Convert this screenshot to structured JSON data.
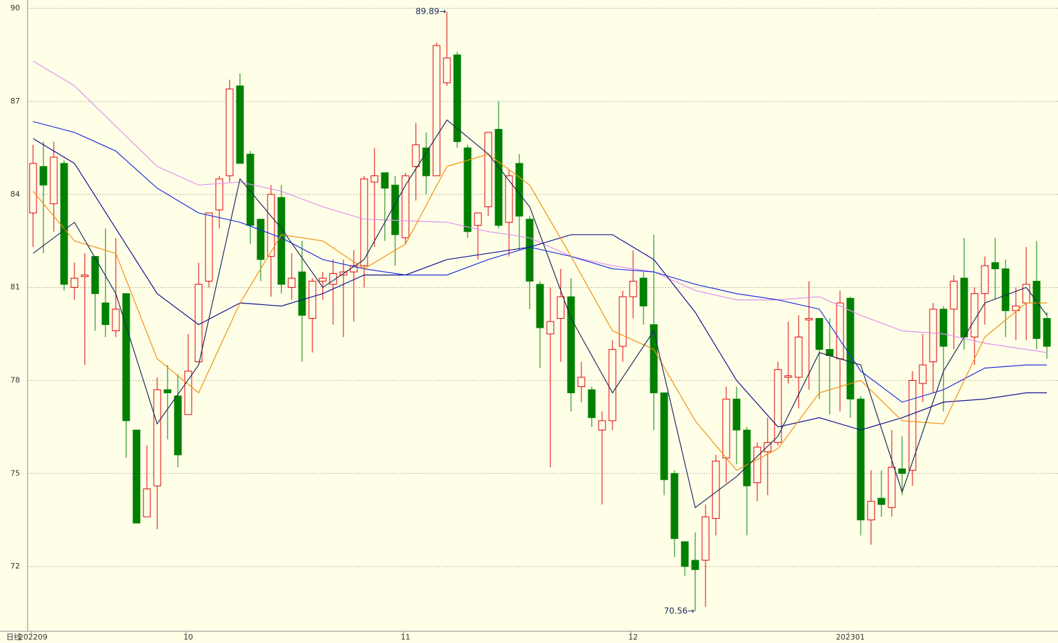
{
  "chart_data": {
    "type": "candlestick",
    "x_axis_label": "日线",
    "up_color": "#e00000",
    "down_color": "#008000",
    "grid": true,
    "ylim": [
      69.91,
      90.27
    ],
    "yticks": [
      72,
      75,
      78,
      81,
      84,
      87,
      90
    ],
    "xlim": [
      -0.53,
      99.07
    ],
    "xticks": [
      {
        "value": 0,
        "label": "202209"
      },
      {
        "value": 15,
        "label": "10"
      },
      {
        "value": 36,
        "label": "11"
      },
      {
        "value": 58,
        "label": "12"
      },
      {
        "value": 79,
        "label": "202301"
      }
    ],
    "open": [
      83.4,
      84.9,
      83.7,
      85.0,
      81.0,
      81.35,
      82.0,
      80.5,
      79.6,
      80.8,
      76.4,
      73.6,
      74.6,
      77.7,
      77.5,
      76.9,
      78.6,
      81.2,
      83.5,
      84.6,
      87.5,
      85.3,
      83.2,
      82.0,
      83.9,
      81.0,
      81.5,
      80.0,
      81.2,
      81.1,
      81.4,
      81.5,
      81.7,
      84.4,
      84.7,
      84.3,
      82.6,
      84.9,
      85.5,
      84.6,
      87.6,
      88.5,
      85.5,
      83.0,
      83.6,
      86.1,
      83.1,
      85.0,
      83.2,
      81.1,
      79.5,
      80.0,
      80.7,
      77.8,
      77.7,
      76.4,
      76.7,
      79.1,
      80.7,
      81.3,
      79.8,
      77.6,
      75.0,
      72.8,
      72.2,
      72.2,
      73.55,
      75.5,
      77.4,
      76.4,
      74.7,
      75.7,
      76.0,
      78.1,
      78.1,
      79.95,
      80.0,
      79.0,
      78.7,
      80.65,
      77.4,
      73.5,
      74.2,
      73.9,
      75.15,
      75.1,
      77.9,
      78.6,
      80.3,
      80.3,
      81.3,
      79.4,
      80.8,
      81.8,
      81.6,
      80.25,
      80.5,
      81.2,
      80.0
    ],
    "high": [
      85.6,
      85.7,
      85.7,
      85.1,
      81.8,
      82.1,
      82.0,
      82.9,
      82.6,
      80.8,
      76.4,
      75.9,
      78.1,
      78.5,
      78.2,
      79.5,
      81.8,
      83.4,
      84.6,
      87.7,
      87.9,
      85.4,
      83.2,
      84.3,
      84.3,
      82.1,
      82.5,
      81.3,
      81.5,
      81.9,
      81.9,
      82.2,
      84.6,
      85.5,
      84.7,
      84.6,
      84.7,
      86.3,
      86.0,
      88.9,
      89.89,
      88.6,
      85.6,
      83.4,
      86.0,
      87.0,
      84.8,
      85.3,
      83.3,
      81.2,
      81.0,
      81.6,
      81.3,
      78.6,
      77.8,
      77.0,
      79.3,
      80.9,
      82.2,
      81.5,
      82.7,
      77.6,
      75.1,
      72.8,
      73.1,
      74.0,
      75.6,
      77.8,
      77.8,
      76.5,
      76.0,
      76.8,
      78.6,
      79.9,
      80.1,
      81.2,
      80.0,
      80.0,
      80.9,
      80.7,
      77.5,
      75.1,
      75.1,
      76.4,
      76.2,
      78.3,
      79.5,
      80.5,
      80.4,
      81.4,
      82.6,
      81.0,
      82.0,
      82.6,
      81.9,
      81.0,
      82.3,
      82.5,
      80.2
    ],
    "low": [
      82.3,
      82.1,
      82.8,
      80.9,
      80.6,
      78.5,
      79.6,
      79.4,
      79.4,
      75.5,
      73.4,
      73.6,
      73.2,
      76.1,
      75.2,
      76.9,
      78.6,
      81.0,
      82.9,
      84.4,
      85.0,
      82.4,
      81.2,
      80.7,
      80.8,
      80.6,
      78.6,
      78.9,
      80.6,
      79.8,
      79.4,
      79.9,
      81.0,
      82.3,
      82.5,
      81.7,
      82.4,
      83.8,
      84.0,
      84.6,
      87.5,
      85.5,
      82.6,
      81.9,
      83.3,
      82.9,
      82.0,
      82.2,
      80.3,
      78.4,
      75.2,
      78.6,
      77.0,
      77.3,
      76.5,
      74.0,
      76.4,
      78.6,
      80.0,
      79.8,
      76.4,
      74.3,
      72.3,
      71.7,
      70.56,
      70.7,
      73.0,
      74.7,
      75.3,
      73.0,
      74.1,
      74.3,
      75.9,
      77.9,
      77.1,
      77.7,
      77.4,
      76.9,
      77.0,
      76.8,
      73.0,
      72.7,
      73.6,
      73.6,
      74.3,
      74.6,
      77.3,
      77.6,
      77.0,
      79.0,
      79.0,
      78.5,
      79.8,
      80.6,
      79.4,
      79.3,
      79.3,
      79.0,
      78.7
    ],
    "close": [
      85.0,
      84.3,
      85.2,
      81.1,
      81.3,
      81.4,
      80.8,
      79.8,
      80.3,
      76.7,
      73.4,
      74.5,
      77.7,
      77.6,
      75.6,
      78.3,
      81.1,
      83.4,
      84.5,
      87.4,
      85.0,
      83.0,
      81.9,
      84.0,
      81.1,
      81.3,
      80.1,
      81.2,
      81.3,
      81.45,
      81.5,
      81.7,
      84.5,
      84.6,
      84.2,
      82.7,
      84.6,
      85.6,
      84.6,
      88.8,
      88.4,
      85.7,
      82.8,
      83.4,
      86.0,
      83.0,
      84.6,
      83.3,
      81.2,
      79.7,
      79.9,
      80.7,
      77.6,
      78.1,
      76.8,
      76.7,
      79.0,
      80.7,
      81.2,
      80.4,
      77.6,
      74.8,
      72.9,
      72.0,
      71.9,
      73.6,
      75.4,
      77.4,
      76.4,
      74.6,
      75.85,
      76.0,
      78.35,
      78.15,
      79.4,
      80.0,
      79.0,
      78.8,
      80.5,
      77.4,
      73.5,
      74.1,
      74.0,
      75.2,
      75.0,
      78.0,
      78.5,
      80.3,
      79.1,
      81.2,
      79.4,
      80.8,
      81.7,
      81.6,
      80.25,
      80.4,
      81.1,
      79.35,
      79.1
    ],
    "ma_x": [
      0,
      4,
      8,
      12,
      16,
      20,
      24,
      28,
      32,
      36,
      40,
      44,
      48,
      52,
      56,
      60,
      64,
      68,
      72,
      76,
      80,
      84,
      88,
      92,
      96,
      98
    ],
    "lines": [
      {
        "color": "#e090f0",
        "values": [
          88.3,
          87.5,
          86.2,
          84.9,
          84.3,
          84.4,
          84.1,
          83.6,
          83.2,
          83.15,
          83.1,
          82.8,
          82.6,
          82.0,
          81.7,
          81.5,
          80.9,
          80.6,
          80.6,
          80.7,
          80.1,
          79.6,
          79.5,
          79.2,
          79.0,
          78.9
        ]
      },
      {
        "color": "#2030e0",
        "values": [
          86.35,
          86.0,
          85.4,
          84.2,
          83.4,
          83.1,
          82.6,
          81.9,
          81.6,
          81.4,
          81.4,
          81.9,
          82.3,
          82.0,
          81.6,
          81.5,
          81.1,
          80.8,
          80.6,
          80.3,
          78.3,
          77.3,
          77.7,
          78.4,
          78.5,
          78.5
        ]
      },
      {
        "color": "#101090",
        "values": [
          85.8,
          85.0,
          82.9,
          80.8,
          79.8,
          80.5,
          80.4,
          80.8,
          81.4,
          81.4,
          81.9,
          82.1,
          82.3,
          82.7,
          82.7,
          81.9,
          80.2,
          78.0,
          76.5,
          76.8,
          76.4,
          76.8,
          77.3,
          77.4,
          77.6,
          77.6
        ]
      },
      {
        "color": "#f0900a",
        "values": [
          84.1,
          82.5,
          82.1,
          78.7,
          77.6,
          80.5,
          82.7,
          82.5,
          81.6,
          82.4,
          84.9,
          85.3,
          84.3,
          82.0,
          79.6,
          79.0,
          76.7,
          75.1,
          75.8,
          77.6,
          78.0,
          76.7,
          76.6,
          79.4,
          80.5,
          80.5
        ]
      },
      {
        "color": "#1c2a5c",
        "values": [
          82.1,
          83.1,
          80.8,
          76.6,
          78.5,
          84.5,
          82.9,
          81.0,
          81.9,
          84.3,
          86.4,
          85.3,
          83.6,
          80.0,
          77.6,
          79.6,
          73.9,
          74.9,
          76.2,
          78.9,
          78.5,
          74.4,
          78.3,
          80.5,
          81.0,
          80.1
        ]
      }
    ],
    "annotations": [
      {
        "label": "89.89→",
        "value": 89.89
      },
      {
        "label": "70.56→",
        "value": 70.56
      }
    ]
  }
}
